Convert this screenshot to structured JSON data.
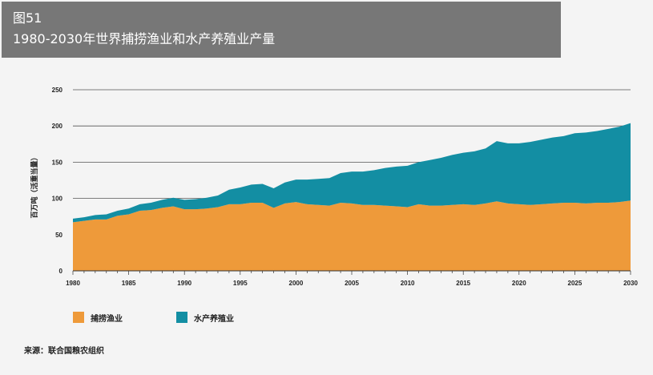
{
  "header": {
    "figure_number": "图51",
    "title": "1980-2030年世界捕捞渔业和水产养殖业产量"
  },
  "source_note": "来源：联合国粮农组织",
  "colors": {
    "capture": "#EE9A3A",
    "aquaculture": "#138EA3",
    "header_bg": "#777777"
  },
  "chart_data": {
    "type": "area",
    "stacked": true,
    "title": "1980-2030年世界捕捞渔业和水产养殖业产量",
    "xlabel": "",
    "ylabel": "百万吨（活重当量）",
    "xlim": [
      1980,
      2030
    ],
    "ylim": [
      0,
      250
    ],
    "x_ticks": [
      "1980",
      "1985",
      "1990",
      "1995",
      "2000",
      "2005",
      "2010",
      "2015",
      "2020",
      "2025",
      "2030"
    ],
    "y_ticks": [
      "0",
      "50",
      "100",
      "150",
      "200",
      "250"
    ],
    "grid": "horizontal",
    "legend_position": "bottom",
    "x": [
      1980,
      1981,
      1982,
      1983,
      1984,
      1985,
      1986,
      1987,
      1988,
      1989,
      1990,
      1991,
      1992,
      1993,
      1994,
      1995,
      1996,
      1997,
      1998,
      1999,
      2000,
      2001,
      2002,
      2003,
      2004,
      2005,
      2006,
      2007,
      2008,
      2009,
      2010,
      2011,
      2012,
      2013,
      2014,
      2015,
      2016,
      2017,
      2018,
      2019,
      2020,
      2021,
      2022,
      2023,
      2024,
      2025,
      2026,
      2027,
      2028,
      2029,
      2030
    ],
    "series": [
      {
        "name": "捕捞渔业",
        "values": [
          67,
          69,
          71,
          71,
          76,
          78,
          83,
          84,
          87,
          89,
          85,
          85,
          86,
          88,
          92,
          92,
          94,
          94,
          87,
          93,
          95,
          92,
          91,
          90,
          94,
          93,
          91,
          91,
          90,
          89,
          88,
          92,
          90,
          90,
          91,
          92,
          91,
          93,
          96,
          93,
          92,
          91,
          92,
          93,
          94,
          94,
          93,
          94,
          94,
          95,
          97
        ]
      },
      {
        "name": "水产养殖业",
        "values": [
          5,
          5,
          6,
          7,
          7,
          8,
          9,
          10,
          11,
          12,
          13,
          14,
          15,
          16,
          20,
          23,
          25,
          26,
          27,
          29,
          31,
          34,
          36,
          38,
          41,
          44,
          46,
          48,
          52,
          55,
          57,
          58,
          63,
          66,
          69,
          71,
          74,
          76,
          83,
          83,
          84,
          87,
          89,
          91,
          92,
          96,
          98,
          99,
          102,
          104,
          107
        ]
      }
    ]
  }
}
